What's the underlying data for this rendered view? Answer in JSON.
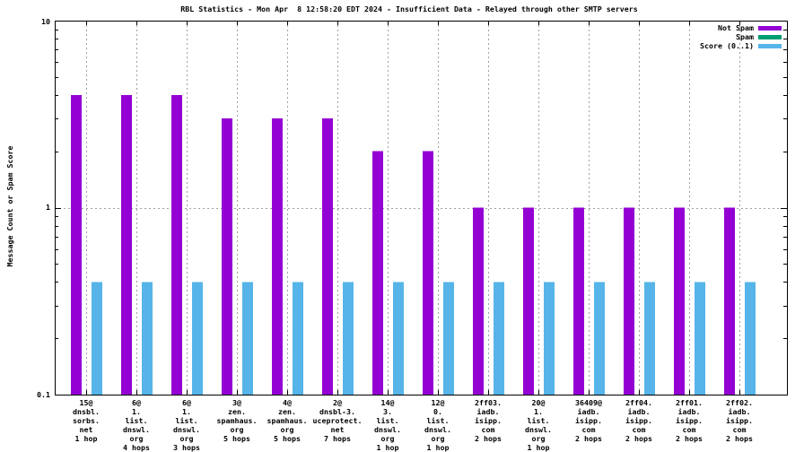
{
  "chart_data": {
    "type": "bar",
    "title": "RBL Statistics - Mon Apr  8 12:58:20 EDT 2024 - Insufficient Data - Relayed through other SMTP servers",
    "ylabel": "Message Count or Spam Score",
    "xlabel": "",
    "y_scale": "log10",
    "ylim": [
      0.1,
      10
    ],
    "y_major_ticks": [
      0.1,
      1,
      10
    ],
    "y_tick_labels": [
      "0.1",
      "1",
      "10"
    ],
    "grid": {
      "vertical_per_category": true,
      "horizontal_values": [
        1
      ],
      "style": "dashed-grey"
    },
    "legend_position": "top-right-inside",
    "legend": [
      {
        "label": "Not Spam",
        "color": "#9400d3"
      },
      {
        "label": "Spam",
        "color": "#009e73"
      },
      {
        "label": "Score (0..1)",
        "color": "#56b4e9"
      }
    ],
    "colors": {
      "axis": "#000000",
      "grid": "#a0a0a0",
      "background": "#ffffff"
    },
    "categories": [
      [
        "15@",
        "dnsbl.",
        "sorbs.",
        "net",
        "1 hop"
      ],
      [
        "6@",
        "1.",
        "list.",
        "dnswl.",
        "org",
        "4 hops"
      ],
      [
        "6@",
        "1.",
        "list.",
        "dnswl.",
        "org",
        "3 hops"
      ],
      [
        "3@",
        "zen.",
        "spamhaus.",
        "org",
        "5 hops"
      ],
      [
        "4@",
        "zen.",
        "spamhaus.",
        "org",
        "5 hops"
      ],
      [
        "2@",
        "dnsbl-3.",
        "uceprotect.",
        "net",
        "7 hops"
      ],
      [
        "14@",
        "3.",
        "list.",
        "dnswl.",
        "org",
        "1 hop"
      ],
      [
        "12@",
        "0.",
        "list.",
        "dnswl.",
        "org",
        "1 hop"
      ],
      [
        "2ff03.",
        "iadb.",
        "isipp.",
        "com",
        "2 hops"
      ],
      [
        "20@",
        "1.",
        "list.",
        "dnswl.",
        "org",
        "1 hop"
      ],
      [
        "36409@",
        "iadb.",
        "isipp.",
        "com",
        "2 hops"
      ],
      [
        "2ff04.",
        "iadb.",
        "isipp.",
        "com",
        "2 hops"
      ],
      [
        "2ff01.",
        "iadb.",
        "isipp.",
        "com",
        "2 hops"
      ],
      [
        "2ff02.",
        "iadb.",
        "isipp.",
        "com",
        "2 hops"
      ]
    ],
    "series": [
      {
        "name": "Not Spam",
        "color": "#9400d3",
        "values": [
          4,
          4,
          4,
          3,
          3,
          3,
          2,
          2,
          1,
          1,
          1,
          1,
          1,
          1
        ]
      },
      {
        "name": "Spam",
        "color": "#009e73",
        "values": [
          0,
          0,
          0,
          0,
          0,
          0,
          0,
          0,
          0,
          0,
          0,
          0,
          0,
          0
        ]
      },
      {
        "name": "Score (0..1)",
        "color": "#56b4e9",
        "values": [
          0.4,
          0.4,
          0.4,
          0.4,
          0.4,
          0.4,
          0.4,
          0.4,
          0.4,
          0.4,
          0.4,
          0.4,
          0.4,
          0.4
        ]
      }
    ]
  }
}
